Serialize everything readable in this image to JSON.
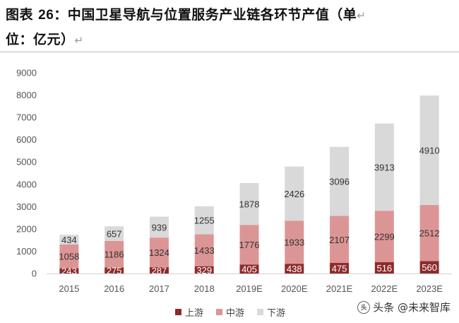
{
  "figure": {
    "title_prefix": "图表 ",
    "title_number": "26",
    "title_text": "：中国卫星导航与位置服务产业链各环节产值（单",
    "title_line2": "位：亿元）",
    "return_mark": "↵"
  },
  "watermark": {
    "logo_text": "头",
    "text": "头条 @未来智库"
  },
  "colors": {
    "upstream": "#8e2b2b",
    "midstream": "#dc9595",
    "downstream": "#d9d9d9"
  },
  "chart_data": {
    "type": "bar",
    "stacked": true,
    "categories": [
      "2015",
      "2016",
      "2017",
      "2018",
      "2019E",
      "2020E",
      "2021E",
      "2022E",
      "2023E"
    ],
    "series": [
      {
        "name": "上游",
        "values": [
          243,
          275,
          287,
          329,
          405,
          438,
          475,
          516,
          560
        ]
      },
      {
        "name": "中游",
        "values": [
          1058,
          1186,
          1324,
          1433,
          1776,
          1933,
          2107,
          2299,
          2512
        ]
      },
      {
        "name": "下游",
        "values": [
          434,
          657,
          939,
          1255,
          1878,
          2426,
          3096,
          3913,
          4910
        ]
      }
    ],
    "yticks": [
      0,
      1000,
      2000,
      3000,
      4000,
      5000,
      6000,
      7000,
      8000,
      9000
    ],
    "ylim": [
      0,
      9000
    ],
    "grid": false,
    "legend_position": "bottom"
  }
}
